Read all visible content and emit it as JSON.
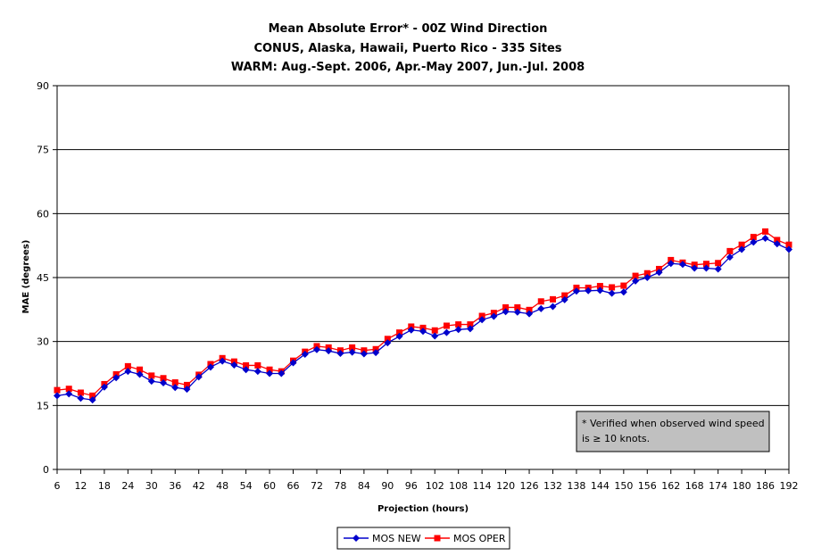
{
  "chart_data": {
    "type": "line",
    "title": [
      "Mean Absolute Error* - 00Z Wind Direction",
      "CONUS, Alaska, Hawaii, Puerto Rico - 335 Sites",
      "WARM: Aug.-Sept. 2006, Apr.-May 2007, Jun.-Jul. 2008"
    ],
    "xlabel": "Projection (hours)",
    "ylabel": "MAE (degrees)",
    "ylim": [
      0,
      90
    ],
    "yticks": [
      0,
      15,
      30,
      45,
      60,
      75,
      90
    ],
    "xlim": [
      6,
      192
    ],
    "xticks": [
      6,
      12,
      18,
      24,
      30,
      36,
      42,
      48,
      54,
      60,
      66,
      72,
      78,
      84,
      90,
      96,
      102,
      108,
      114,
      120,
      126,
      132,
      138,
      144,
      150,
      156,
      162,
      168,
      174,
      180,
      186,
      192
    ],
    "grid": "horizontal",
    "legend_position": "bottom",
    "annotation": "* Verified when observed wind speed is ≥ 10 knots.",
    "x": [
      6,
      9,
      12,
      15,
      18,
      21,
      24,
      27,
      30,
      33,
      36,
      39,
      42,
      45,
      48,
      51,
      54,
      57,
      60,
      63,
      66,
      69,
      72,
      75,
      78,
      81,
      84,
      87,
      90,
      93,
      96,
      99,
      102,
      105,
      108,
      111,
      114,
      117,
      120,
      123,
      126,
      129,
      132,
      135,
      138,
      141,
      144,
      147,
      150,
      153,
      156,
      159,
      162,
      165,
      168,
      171,
      174,
      177,
      180,
      183,
      186,
      189,
      192
    ],
    "series": [
      {
        "name": "MOS NEW",
        "color": "#0000cc",
        "marker": "diamond",
        "values": [
          17.3,
          17.7,
          16.7,
          16.3,
          19.3,
          21.5,
          23.0,
          22.3,
          20.7,
          20.3,
          19.2,
          18.8,
          21.7,
          24.0,
          25.4,
          24.5,
          23.4,
          23.0,
          22.5,
          22.5,
          25.0,
          27.0,
          28.1,
          27.8,
          27.2,
          27.5,
          27.1,
          27.4,
          29.7,
          31.2,
          32.7,
          32.4,
          31.3,
          32.1,
          32.8,
          33.0,
          35.1,
          35.9,
          37.0,
          36.9,
          36.5,
          37.7,
          38.2,
          39.8,
          41.8,
          41.9,
          42.0,
          41.3,
          41.6,
          44.2,
          45.0,
          46.2,
          48.3,
          48.1,
          47.2,
          47.2,
          47.0,
          49.8,
          51.6,
          53.3,
          54.2,
          52.9,
          51.6
        ]
      },
      {
        "name": "MOS OPER",
        "color": "#ff0000",
        "marker": "square",
        "values": [
          18.6,
          18.9,
          18.0,
          17.3,
          20.0,
          22.3,
          24.2,
          23.4,
          22.0,
          21.4,
          20.4,
          19.8,
          22.2,
          24.7,
          26.1,
          25.3,
          24.4,
          24.4,
          23.4,
          23.0,
          25.5,
          27.6,
          28.9,
          28.6,
          27.9,
          28.6,
          27.9,
          28.2,
          30.6,
          32.1,
          33.5,
          33.2,
          32.6,
          33.7,
          34.0,
          34.0,
          36.0,
          36.7,
          38.0,
          38.0,
          37.4,
          39.4,
          39.9,
          40.8,
          42.6,
          42.6,
          43.0,
          42.7,
          43.1,
          45.4,
          46.0,
          47.0,
          49.1,
          48.5,
          48.0,
          48.2,
          48.4,
          51.2,
          52.7,
          54.5,
          55.8,
          53.8,
          52.7
        ]
      }
    ]
  }
}
